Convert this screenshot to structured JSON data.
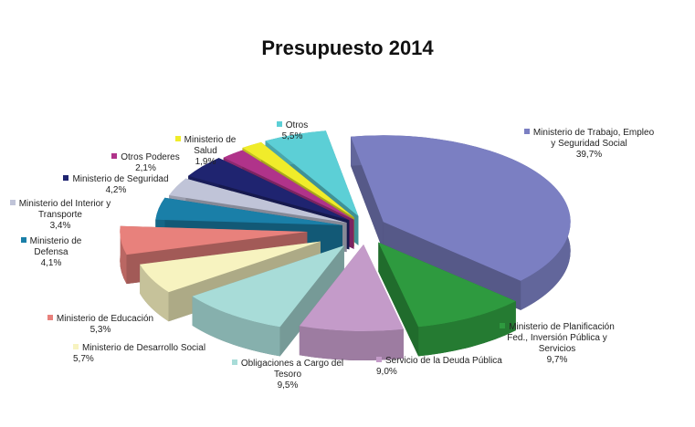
{
  "chart_data": {
    "type": "pie",
    "title": "Presupuesto  2014",
    "categories": [
      "Ministerio de Trabajo, Empleo y Seguridad Social",
      "Ministerio de Planificación Fed., Inversión Pública y Servicios",
      "Servicio de la Deuda Pública",
      "Obligaciones a Cargo del Tesoro",
      "Ministerio de Desarrollo Social",
      "Ministerio de Educación",
      "Ministerio de Defensa",
      "Ministerio del Interior y Transporte",
      "Ministerio de Seguridad",
      "Otros Poderes",
      "Ministerio de Salud",
      "Otros"
    ],
    "values": [
      39.7,
      9.7,
      9.0,
      9.5,
      5.7,
      5.3,
      4.1,
      3.4,
      4.2,
      2.1,
      1.9,
      5.5
    ],
    "value_labels": [
      "39,7%",
      "9,7%",
      "9,0%",
      "9,5%",
      "5,7%",
      "5,3%",
      "4,1%",
      "3,4%",
      "4,2%",
      "2,1%",
      "1,9%",
      "5,5%"
    ],
    "colors": [
      "#7b7fc2",
      "#2e9a3f",
      "#c49bc9",
      "#a8dcd8",
      "#f7f3c0",
      "#e8817c",
      "#1a7fa8",
      "#c0c4d8",
      "#1f2470",
      "#b0338a",
      "#f0ec2a",
      "#5ccfd6"
    ]
  }
}
